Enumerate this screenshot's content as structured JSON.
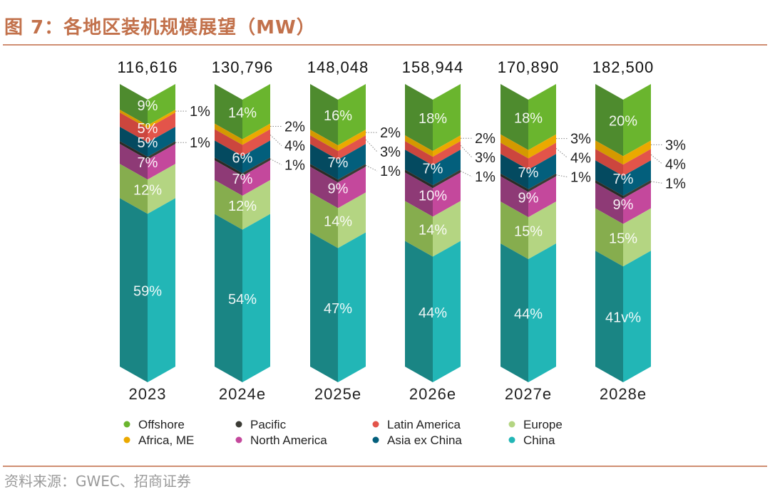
{
  "title": "图 7：各地区装机规模展望（MW）",
  "source": "资料来源：GWEC、招商证券",
  "chart_data": {
    "type": "bar",
    "stacked": true,
    "normalized": true,
    "title": "图 7：各地区装机规模展望（MW）",
    "categories": [
      "2023",
      "2024e",
      "2025e",
      "2026e",
      "2027e",
      "2028e"
    ],
    "totals": [
      "116,616",
      "130,796",
      "148,048",
      "158,944",
      "170,890",
      "182,500"
    ],
    "series": [
      {
        "name": "Offshore",
        "color": "#6ab52e",
        "dark": "#4e8b2e",
        "values": [
          9,
          14,
          16,
          18,
          18,
          20
        ],
        "labels": [
          "9%",
          "14%",
          "16%",
          "18%",
          "18%",
          "20%"
        ],
        "outside": [
          false,
          false,
          false,
          false,
          false,
          false
        ]
      },
      {
        "name": "Africa, ME",
        "color": "#eba900",
        "dark": "#d49900",
        "values": [
          1,
          2,
          2,
          2,
          3,
          3
        ],
        "labels": [
          "1%",
          "2%",
          "2%",
          "2%",
          "3%",
          "3%"
        ],
        "outside": [
          true,
          true,
          true,
          true,
          true,
          true
        ]
      },
      {
        "name": "Latin America",
        "color": "#e3544a",
        "dark": "#cc463e",
        "values": [
          5,
          4,
          3,
          3,
          4,
          4
        ],
        "labels": [
          "5%",
          "4%",
          "3%",
          "3%",
          "4%",
          "4%"
        ],
        "outside": [
          false,
          true,
          true,
          true,
          true,
          true
        ]
      },
      {
        "name": "Asia ex China",
        "color": "#035f7c",
        "dark": "#044a60",
        "values": [
          5,
          6,
          7,
          7,
          7,
          7
        ],
        "labels": [
          "5%",
          "6%",
          "7%",
          "7%",
          "7%",
          "7%"
        ],
        "outside": [
          false,
          false,
          false,
          false,
          false,
          false
        ]
      },
      {
        "name": "Pacific",
        "color": "#3b3b35",
        "dark": "#2b2b27",
        "values": [
          1,
          1,
          1,
          1,
          1,
          1
        ],
        "labels": [
          "1%",
          "1%",
          "1%",
          "1%",
          "1%",
          "1%"
        ],
        "outside": [
          true,
          true,
          true,
          true,
          true,
          true
        ]
      },
      {
        "name": "North America",
        "color": "#c4489c",
        "dark": "#8e3a76",
        "values": [
          7,
          7,
          9,
          10,
          9,
          9
        ],
        "labels": [
          "7%",
          "7%",
          "9%",
          "10%",
          "9%",
          "9%"
        ],
        "outside": [
          false,
          false,
          false,
          false,
          false,
          false
        ]
      },
      {
        "name": "Europe",
        "color": "#b4d582",
        "dark": "#86ad4e",
        "values": [
          12,
          12,
          14,
          14,
          15,
          15
        ],
        "labels": [
          "12%",
          "12%",
          "14%",
          "14%",
          "15%",
          "15%"
        ],
        "outside": [
          false,
          false,
          false,
          false,
          false,
          false
        ]
      },
      {
        "name": "China",
        "color": "#22b6b6",
        "dark": "#1a8584",
        "values": [
          59,
          54,
          47,
          44,
          44,
          41
        ],
        "labels": [
          "59%",
          "54%",
          "47%",
          "44%",
          "44%",
          "41v%"
        ],
        "outside": [
          false,
          false,
          false,
          false,
          false,
          false
        ]
      }
    ],
    "legend_order": [
      "Offshore",
      "Pacific",
      "Latin America",
      "Europe",
      "Africa, ME",
      "North America",
      "Asia ex China",
      "China"
    ],
    "legend_position": "bottom",
    "xlabel": "",
    "ylabel": "",
    "grid": false
  }
}
